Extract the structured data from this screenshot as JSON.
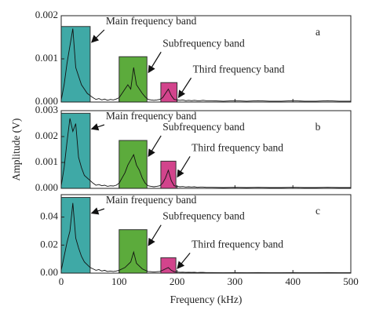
{
  "chart_data": [
    {
      "type": "line",
      "panel": "a",
      "color": "#111111",
      "x": [
        0,
        5,
        10,
        15,
        20,
        25,
        30,
        35,
        40,
        45,
        50,
        55,
        60,
        65,
        70,
        75,
        80,
        85,
        90,
        95,
        100,
        105,
        110,
        115,
        120,
        125,
        130,
        135,
        140,
        145,
        150,
        155,
        160,
        165,
        170,
        175,
        180,
        185,
        190,
        195,
        200,
        205,
        210,
        215,
        220,
        225,
        230,
        235,
        240,
        245,
        250,
        260,
        280,
        300,
        320,
        340,
        360,
        380,
        400,
        420,
        440,
        460,
        480,
        500
      ],
      "values": [
        5e-05,
        0.0004,
        0.0009,
        0.0013,
        0.0017,
        0.0008,
        0.0006,
        0.0004,
        0.0003,
        0.0002,
        0.00015,
        0.0001,
        6e-05,
        8e-05,
        5e-05,
        7e-05,
        4e-05,
        6e-05,
        5e-05,
        7e-05,
        0.0001,
        0.0002,
        0.0003,
        0.0004,
        0.0003,
        0.0008,
        0.0004,
        0.0003,
        0.0002,
        0.00012,
        6e-05,
        5e-05,
        4e-05,
        5e-05,
        6e-05,
        0.0001,
        0.0002,
        0.0003,
        0.00015,
        6e-05,
        5e-05,
        4e-05,
        5e-05,
        3e-05,
        4e-05,
        3e-05,
        4e-05,
        3e-05,
        3e-05,
        4e-05,
        3e-05,
        3e-05,
        2e-05,
        3e-05,
        2e-05,
        3e-05,
        2e-05,
        2e-05,
        3e-05,
        2e-05,
        2e-05,
        3e-05,
        2e-05,
        2e-05
      ],
      "xlim": [
        0,
        500
      ],
      "xticks": [
        0,
        100,
        200,
        300,
        400,
        500
      ],
      "ylim": [
        0,
        0.002
      ],
      "yticks": [
        {
          "value": 0,
          "label": "0.000"
        },
        {
          "value": 0.001,
          "label": "0.001"
        },
        {
          "value": 0.002,
          "label": "0.002"
        }
      ],
      "bands": [
        {
          "label": "Main frequency band",
          "x": [
            0,
            50
          ],
          "height": 0.00175,
          "color": "#3fa9a6"
        },
        {
          "label": "Subfrequency band",
          "x": [
            100,
            148
          ],
          "height": 0.00105,
          "color": "#5cab3c"
        },
        {
          "label": "Third frequency band",
          "x": [
            172,
            200
          ],
          "height": 0.00045,
          "color": "#d2448c"
        }
      ]
    },
    {
      "type": "line",
      "panel": "b",
      "color": "#111111",
      "y_label": "Amplitude (V)",
      "x": [
        0,
        5,
        10,
        15,
        20,
        25,
        30,
        35,
        40,
        45,
        50,
        55,
        60,
        65,
        70,
        75,
        80,
        85,
        90,
        95,
        100,
        105,
        110,
        115,
        120,
        125,
        130,
        135,
        140,
        145,
        150,
        155,
        160,
        165,
        170,
        175,
        180,
        185,
        190,
        195,
        200,
        205,
        210,
        215,
        220,
        225,
        230,
        235,
        240,
        245,
        250,
        260,
        280,
        300,
        320,
        340,
        360,
        380,
        400,
        420,
        440,
        460,
        480,
        500
      ],
      "values": [
        0.0001,
        0.0008,
        0.0018,
        0.0027,
        0.0022,
        0.0025,
        0.0012,
        0.0008,
        0.0005,
        0.0004,
        0.0003,
        0.0002,
        0.00012,
        0.00015,
        0.0001,
        0.00012,
        8e-05,
        0.0001,
        9e-05,
        0.00012,
        0.0002,
        0.0004,
        0.0006,
        0.0009,
        0.0011,
        0.0013,
        0.0009,
        0.0007,
        0.0004,
        0.0002,
        0.0001,
        8e-05,
        6e-05,
        8e-05,
        0.0001,
        0.0002,
        0.0004,
        0.0007,
        0.0003,
        0.0001,
        8e-05,
        6e-05,
        7e-05,
        5e-05,
        6e-05,
        5e-05,
        6e-05,
        4e-05,
        5e-05,
        5e-05,
        4e-05,
        4e-05,
        3e-05,
        4e-05,
        3e-05,
        4e-05,
        3e-05,
        3e-05,
        4e-05,
        3e-05,
        3e-05,
        4e-05,
        3e-05,
        3e-05
      ],
      "xlim": [
        0,
        500
      ],
      "xticks": [
        0,
        100,
        200,
        300,
        400,
        500
      ],
      "ylim": [
        0,
        0.003
      ],
      "yticks": [
        {
          "value": 0,
          "label": "0.000"
        },
        {
          "value": 0.001,
          "label": "0.001"
        },
        {
          "value": 0.002,
          "label": "0.002"
        },
        {
          "value": 0.003,
          "label": "0.003"
        }
      ],
      "bands": [
        {
          "label": "Main frequency band",
          "x": [
            0,
            50
          ],
          "height": 0.0029,
          "color": "#3fa9a6"
        },
        {
          "label": "Subfrequency band",
          "x": [
            100,
            148
          ],
          "height": 0.00185,
          "color": "#5cab3c"
        },
        {
          "label": "Third frequency band",
          "x": [
            172,
            198
          ],
          "height": 0.00105,
          "color": "#d2448c"
        }
      ]
    },
    {
      "type": "line",
      "panel": "c",
      "color": "#111111",
      "x_label": "Frequency (kHz)",
      "x": [
        0,
        5,
        10,
        15,
        20,
        25,
        30,
        35,
        40,
        45,
        50,
        55,
        60,
        65,
        70,
        75,
        80,
        85,
        90,
        95,
        100,
        105,
        110,
        115,
        120,
        125,
        130,
        135,
        140,
        145,
        150,
        155,
        160,
        165,
        170,
        175,
        180,
        185,
        190,
        195,
        200,
        205,
        210,
        215,
        220,
        225,
        230,
        235,
        240,
        245,
        250,
        260,
        280,
        300,
        320,
        340,
        360,
        380,
        400,
        420,
        440,
        460,
        480,
        500
      ],
      "values": [
        0.002,
        0.012,
        0.022,
        0.03,
        0.05,
        0.025,
        0.018,
        0.012,
        0.008,
        0.006,
        0.004,
        0.003,
        0.002,
        0.0025,
        0.0015,
        0.002,
        0.0012,
        0.0015,
        0.0012,
        0.0015,
        0.002,
        0.003,
        0.004,
        0.006,
        0.008,
        0.015,
        0.007,
        0.005,
        0.003,
        0.002,
        0.0012,
        0.001,
        0.0008,
        0.001,
        0.0012,
        0.002,
        0.003,
        0.004,
        0.002,
        0.001,
        0.0008,
        0.0006,
        0.0007,
        0.0005,
        0.0006,
        0.0005,
        0.0006,
        0.0004,
        0.0005,
        0.0005,
        0.0004,
        0.0004,
        0.0003,
        0.0004,
        0.0003,
        0.0004,
        0.0003,
        0.0003,
        0.0004,
        0.0003,
        0.0003,
        0.0004,
        0.0003,
        0.0003
      ],
      "xlim": [
        0,
        500
      ],
      "xticks": [
        0,
        100,
        200,
        300,
        400,
        500
      ],
      "ylim": [
        0,
        0.056
      ],
      "yticks": [
        {
          "value": 0,
          "label": "0.00"
        },
        {
          "value": 0.02,
          "label": "0.02"
        },
        {
          "value": 0.04,
          "label": "0.04"
        }
      ],
      "bands": [
        {
          "label": "Main frequency band",
          "x": [
            0,
            50
          ],
          "height": 0.054,
          "color": "#3fa9a6"
        },
        {
          "label": "Subfrequency band",
          "x": [
            100,
            148
          ],
          "height": 0.031,
          "color": "#5cab3c"
        },
        {
          "label": "Third frequency band",
          "x": [
            172,
            198
          ],
          "height": 0.011,
          "color": "#d2448c"
        }
      ]
    }
  ]
}
